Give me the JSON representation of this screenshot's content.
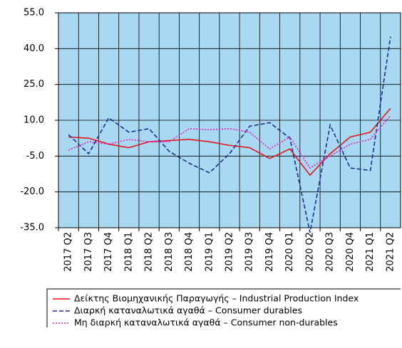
{
  "chart_data": {
    "type": "line",
    "categories": [
      "2017 Q2",
      "2017 Q3",
      "2017 Q4",
      "2018 Q1",
      "2018 Q2",
      "2018 Q3",
      "2018 Q4",
      "2019 Q1",
      "2019 Q2",
      "2019 Q3",
      "2019 Q4",
      "2020 Q1",
      "2020 Q2",
      "2020 Q3",
      "2020 Q4",
      "2021 Q1",
      "2021 Q2"
    ],
    "series": [
      {
        "name": "Δείκτης Βιομηχανικής Παραγωγής – Industrial Production Index",
        "color": "#e3161b",
        "dash": "solid",
        "values": [
          3,
          2.5,
          0,
          -1.5,
          1,
          1.5,
          2,
          1,
          -0.5,
          -1.5,
          -6,
          -2,
          -13,
          -4,
          3,
          5,
          15
        ]
      },
      {
        "name": "Διαρκή καταναλωτικά αγαθά – Consumer durables",
        "color": "#1f2f8f",
        "dash": "dashed",
        "values": [
          4,
          -4,
          11,
          5,
          6.5,
          -3,
          -8,
          -12,
          -4,
          7.5,
          9,
          2.5,
          -37,
          8,
          -10,
          -11,
          45
        ]
      },
      {
        "name": "Μη διαρκή καταναλωτικά αγαθά – Consumer non-durables",
        "color": "#e020c0",
        "dash": "dotted",
        "values": [
          -2.5,
          1,
          0,
          2,
          1,
          1,
          6.5,
          6,
          6.5,
          5,
          -2,
          3,
          -10,
          -5,
          0,
          2,
          12
        ]
      }
    ],
    "ylim": [
      -35,
      55
    ],
    "yticks": [
      {
        "value": -35,
        "label": "-35.0"
      },
      {
        "value": -20,
        "label": "-20.0"
      },
      {
        "value": -5,
        "label": "-5.0"
      },
      {
        "value": 10,
        "label": "10.0"
      },
      {
        "value": 25,
        "label": "25.0"
      },
      {
        "value": 40,
        "label": "40.0"
      },
      {
        "value": 55,
        "label": "55.0"
      }
    ],
    "grid": true,
    "background": "#a9d9f2"
  }
}
